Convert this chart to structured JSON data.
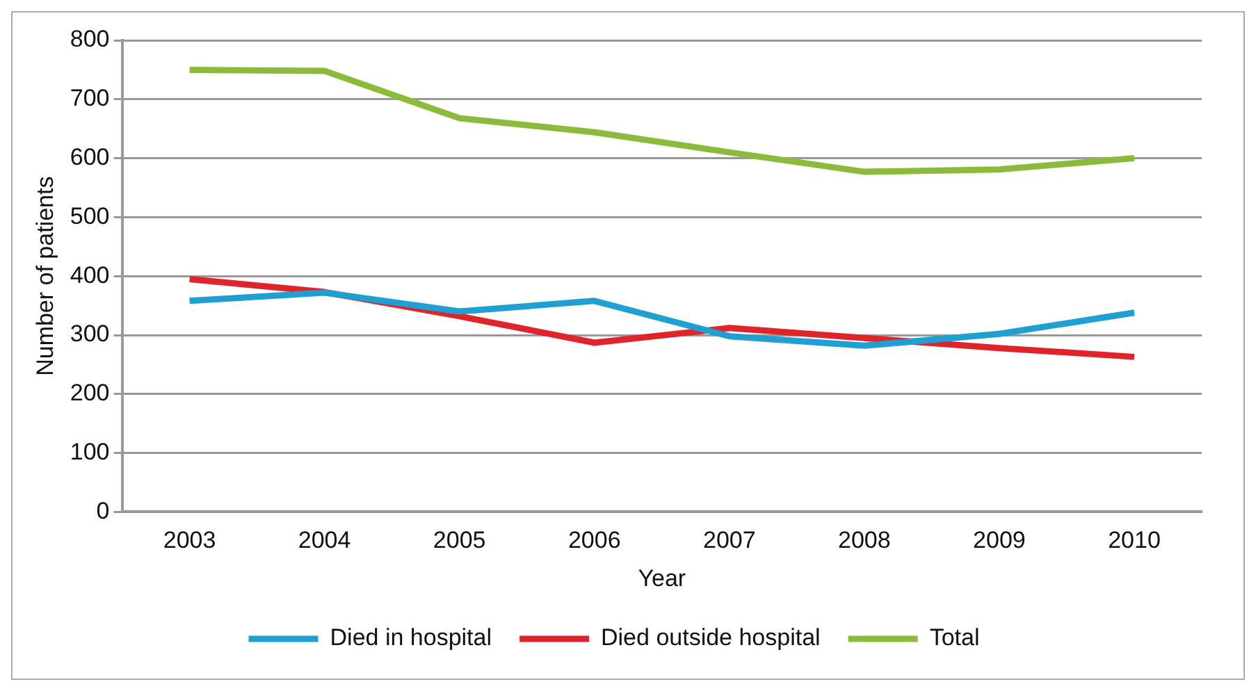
{
  "chart_data": {
    "type": "line",
    "xlabel": "Year",
    "ylabel": "Number of patients",
    "categories": [
      "2003",
      "2004",
      "2005",
      "2006",
      "2007",
      "2008",
      "2009",
      "2010"
    ],
    "series": [
      {
        "name": "Died in hospital",
        "color": "#1f9fd2",
        "values": [
          358,
          372,
          340,
          358,
          298,
          282,
          302,
          338
        ]
      },
      {
        "name": "Died outside hospital",
        "color": "#e0242b",
        "values": [
          395,
          373,
          332,
          287,
          312,
          295,
          278,
          263
        ]
      },
      {
        "name": "Total",
        "color": "#8cbb3c",
        "values": [
          750,
          748,
          668,
          644,
          610,
          577,
          581,
          600
        ]
      }
    ],
    "ylim": [
      0,
      800
    ],
    "yticks": [
      0,
      100,
      200,
      300,
      400,
      500,
      600,
      700,
      800
    ],
    "grid": "y",
    "legend": "bottom",
    "marker": "none",
    "line_style": "solid"
  }
}
